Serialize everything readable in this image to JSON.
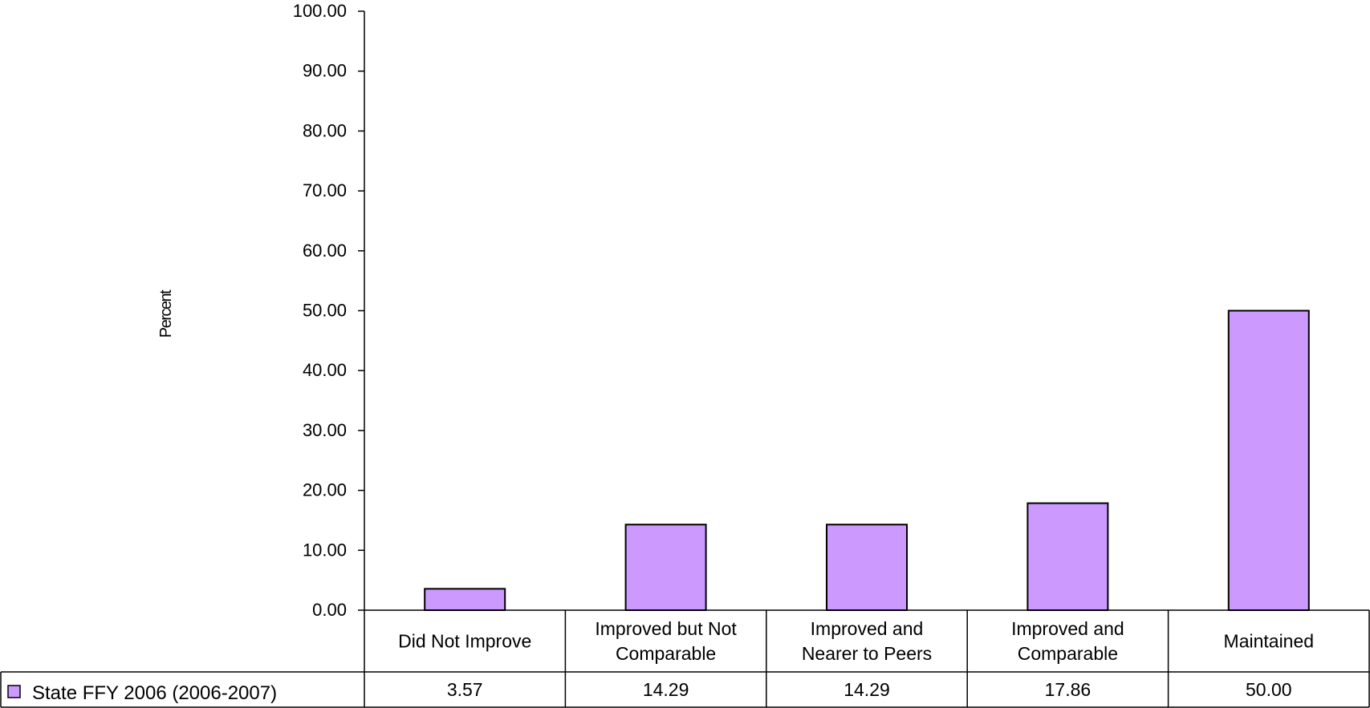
{
  "chart_data": {
    "type": "bar",
    "categories": [
      [
        "Did Not Improve"
      ],
      [
        "Improved but Not",
        "Comparable"
      ],
      [
        "Improved and",
        "Nearer to Peers"
      ],
      [
        "Improved and",
        "Comparable"
      ],
      [
        "Maintained"
      ]
    ],
    "series": [
      {
        "name": "State FFY 2006 (2006-2007)",
        "values": [
          3.57,
          14.29,
          14.29,
          17.86,
          50.0
        ],
        "value_labels": [
          "3.57",
          "14.29",
          "14.29",
          "17.86",
          "50.00"
        ],
        "color": "#cc99ff"
      }
    ],
    "ylabel": "Percent",
    "ylim": [
      0,
      100
    ],
    "yticks": [
      "0.00",
      "10.00",
      "20.00",
      "30.00",
      "40.00",
      "50.00",
      "60.00",
      "70.00",
      "80.00",
      "90.00",
      "100.00"
    ],
    "grid": false,
    "legend": "data-table-row",
    "data_table": true
  }
}
